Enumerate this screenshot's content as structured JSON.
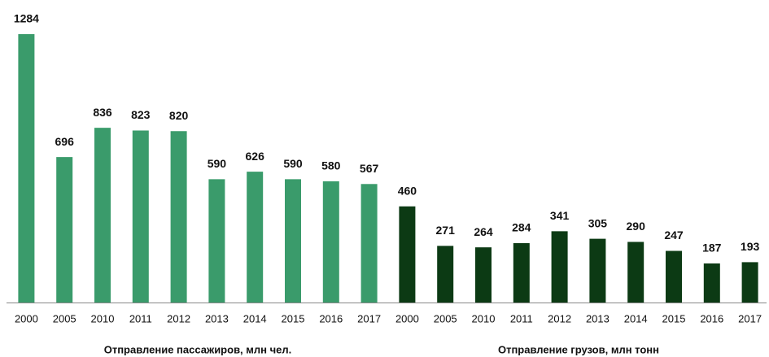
{
  "chart_data": [
    {
      "type": "bar",
      "x_label": "Отправление пассажиров, млн чел.",
      "categories": [
        "2000",
        "2005",
        "2010",
        "2011",
        "2012",
        "2013",
        "2014",
        "2015",
        "2016",
        "2017"
      ],
      "values": [
        1284,
        696,
        836,
        823,
        820,
        590,
        626,
        590,
        580,
        567
      ],
      "color": "#3a9b6b"
    },
    {
      "type": "bar",
      "x_label": "Отправление грузов, млн тонн",
      "categories": [
        "2000",
        "2005",
        "2010",
        "2011",
        "2012",
        "2013",
        "2014",
        "2015",
        "2016",
        "2017"
      ],
      "values": [
        460,
        271,
        264,
        284,
        341,
        305,
        290,
        247,
        187,
        193
      ],
      "color": "#0c3a14"
    }
  ]
}
